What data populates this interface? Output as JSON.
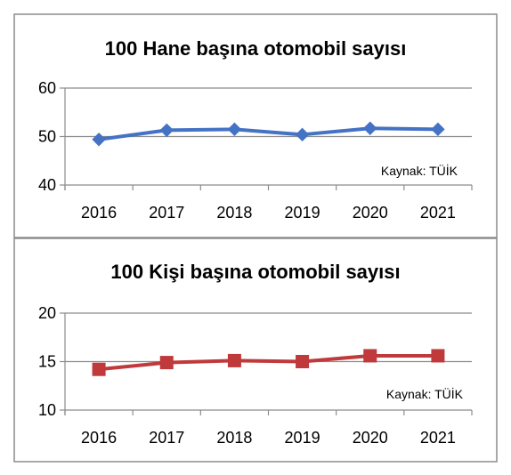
{
  "chart_data": [
    {
      "type": "line",
      "title": "100 Hane başına otomobil sayısı",
      "x": [
        "2016",
        "2017",
        "2018",
        "2019",
        "2020",
        "2021"
      ],
      "series": [
        {
          "values": [
            49.4,
            51.3,
            51.5,
            50.4,
            51.7,
            51.5
          ],
          "color": "#4472C4",
          "marker": "diamond"
        }
      ],
      "ylim": [
        40,
        60
      ],
      "yticks": [
        "40",
        "50",
        "60"
      ],
      "grid": true,
      "source_note": "Kaynak: TÜİK"
    },
    {
      "type": "line",
      "title": "100 Kişi başına otomobil sayısı",
      "x": [
        "2016",
        "2017",
        "2018",
        "2019",
        "2020",
        "2021"
      ],
      "series": [
        {
          "values": [
            14.2,
            14.9,
            15.1,
            15.0,
            15.6,
            15.6
          ],
          "color": "#C0393B",
          "marker": "square"
        }
      ],
      "ylim": [
        10,
        20
      ],
      "yticks": [
        "10",
        "15",
        "20"
      ],
      "grid": true,
      "source_note": "Kaynak: TÜİK"
    }
  ]
}
